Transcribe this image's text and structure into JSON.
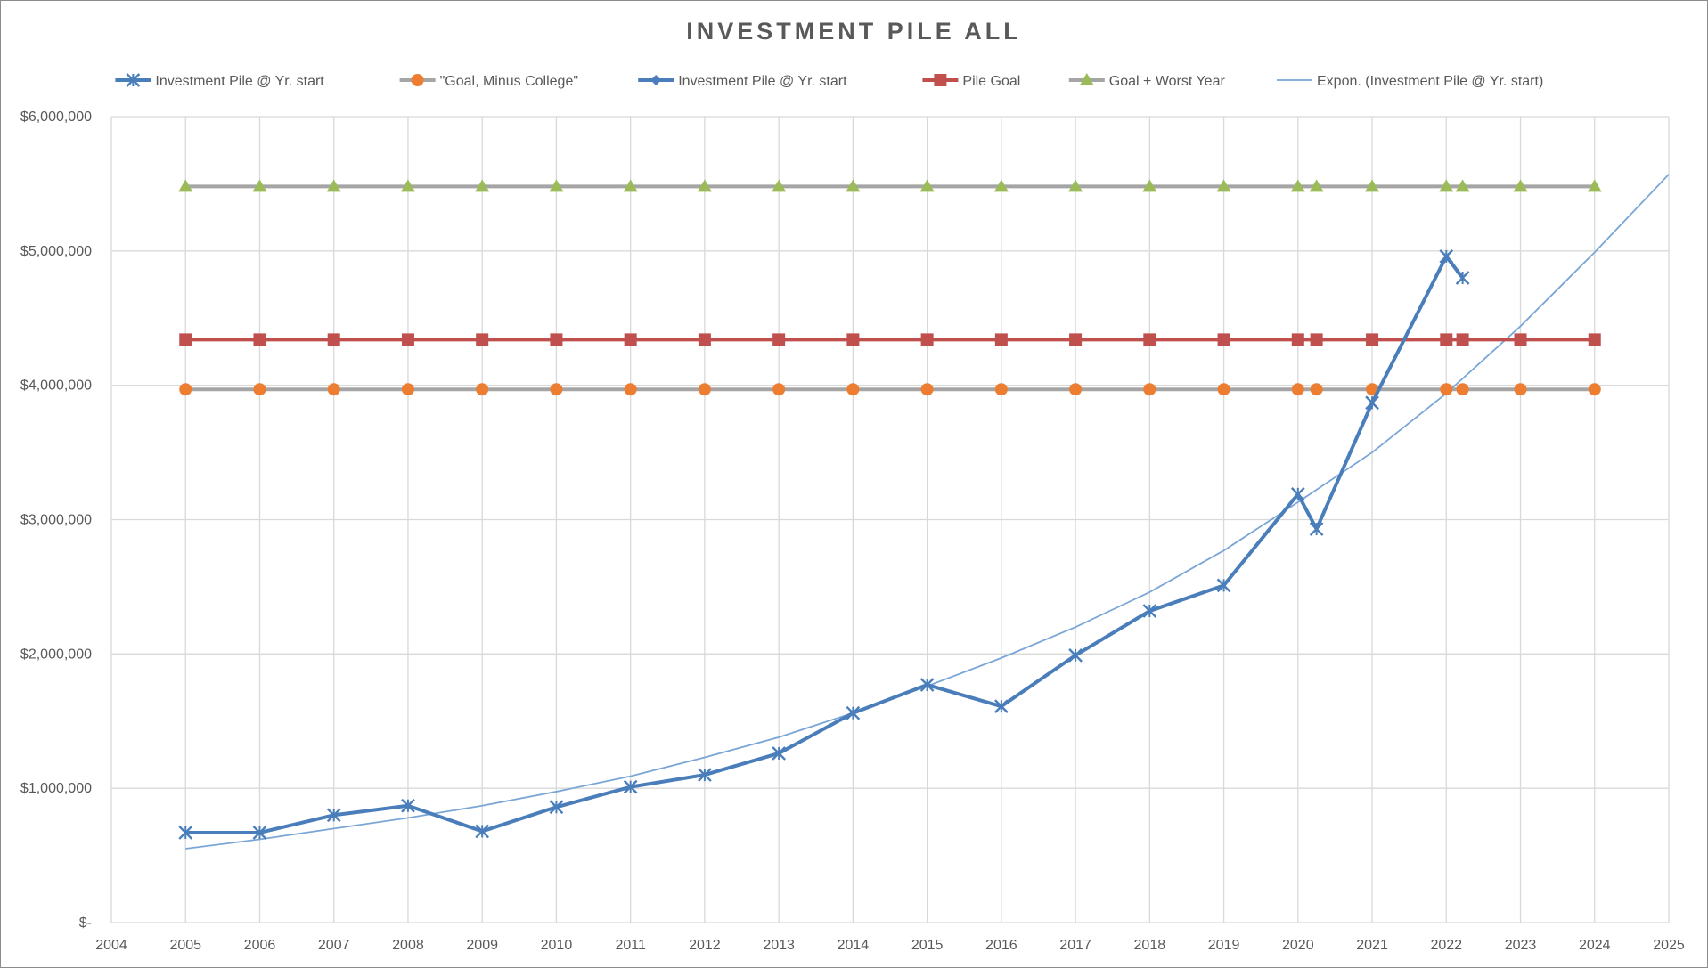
{
  "chart_data": {
    "type": "line",
    "title": "INVESTMENT PILE ALL",
    "xlim": [
      2004,
      2025
    ],
    "ylim": [
      0,
      6000000
    ],
    "x_ticks": [
      "2004",
      "2005",
      "2006",
      "2007",
      "2008",
      "2009",
      "2010",
      "2011",
      "2012",
      "2013",
      "2014",
      "2015",
      "2016",
      "2017",
      "2018",
      "2019",
      "2020",
      "2021",
      "2022",
      "2023",
      "2024",
      "2025"
    ],
    "y_ticks": [
      {
        "value": 0,
        "label": "$-"
      },
      {
        "value": 1000000,
        "label": "$1,000,000"
      },
      {
        "value": 2000000,
        "label": "$2,000,000"
      },
      {
        "value": 3000000,
        "label": "$3,000,000"
      },
      {
        "value": 4000000,
        "label": "$4,000,000"
      },
      {
        "value": 5000000,
        "label": "$5,000,000"
      },
      {
        "value": 6000000,
        "label": "$6,000,000"
      }
    ],
    "grid": true,
    "legend_position": "top",
    "legend": [
      {
        "label": "Investment Pile @ Yr. start",
        "color": "#4a7ebb",
        "marker": "x"
      },
      {
        "label": "\"Goal, Minus College\"",
        "color": "#a5a5a5",
        "marker_color": "#ed7d31",
        "marker": "circle"
      },
      {
        "label": "Investment Pile @ Yr. start",
        "color": "#4a7ebb",
        "marker": "diamond"
      },
      {
        "label": "Pile Goal",
        "color": "#c0504d",
        "marker": "square"
      },
      {
        "label": "Goal + Worst Year",
        "color": "#a5a5a5",
        "marker_color": "#9bbb59",
        "marker": "triangle"
      },
      {
        "label": "Expon. (Investment Pile @ Yr. start)",
        "color": "#7aa6d6",
        "marker": "none"
      }
    ],
    "series": [
      {
        "name": "Investment Pile @ Yr. start",
        "color": "#4a7ebb",
        "marker": "x",
        "x": [
          2005,
          2006,
          2007,
          2008,
          2009,
          2010,
          2011,
          2012,
          2013,
          2014,
          2015,
          2016,
          2017,
          2018,
          2019,
          2020,
          2020.25,
          2021,
          2022,
          2022.22
        ],
        "y": [
          670000,
          670000,
          800000,
          870000,
          680000,
          860000,
          1010000,
          1100000,
          1260000,
          1560000,
          1770000,
          1610000,
          1990000,
          2320000,
          2510000,
          3190000,
          2930000,
          3870000,
          4960000,
          4800000
        ]
      },
      {
        "name": "\"Goal, Minus College\"",
        "color": "#a5a5a5",
        "marker_color": "#ed7d31",
        "marker": "circle",
        "x": [
          2005,
          2006,
          2007,
          2008,
          2009,
          2010,
          2011,
          2012,
          2013,
          2014,
          2015,
          2016,
          2017,
          2018,
          2019,
          2020,
          2020.25,
          2021,
          2022,
          2022.22,
          2023,
          2024
        ],
        "y": [
          3970000,
          3970000,
          3970000,
          3970000,
          3970000,
          3970000,
          3970000,
          3970000,
          3970000,
          3970000,
          3970000,
          3970000,
          3970000,
          3970000,
          3970000,
          3970000,
          3970000,
          3970000,
          3970000,
          3970000,
          3970000,
          3970000
        ]
      },
      {
        "name": "Pile Goal",
        "color": "#c0504d",
        "marker": "square",
        "x": [
          2005,
          2006,
          2007,
          2008,
          2009,
          2010,
          2011,
          2012,
          2013,
          2014,
          2015,
          2016,
          2017,
          2018,
          2019,
          2020,
          2020.25,
          2021,
          2022,
          2022.22,
          2023,
          2024
        ],
        "y": [
          4340000,
          4340000,
          4340000,
          4340000,
          4340000,
          4340000,
          4340000,
          4340000,
          4340000,
          4340000,
          4340000,
          4340000,
          4340000,
          4340000,
          4340000,
          4340000,
          4340000,
          4340000,
          4340000,
          4340000,
          4340000,
          4340000
        ]
      },
      {
        "name": "Goal + Worst Year",
        "color": "#a5a5a5",
        "marker_color": "#9bbb59",
        "marker": "triangle",
        "x": [
          2005,
          2006,
          2007,
          2008,
          2009,
          2010,
          2011,
          2012,
          2013,
          2014,
          2015,
          2016,
          2017,
          2018,
          2019,
          2020,
          2020.25,
          2021,
          2022,
          2022.22,
          2023,
          2024
        ],
        "y": [
          5480000,
          5480000,
          5480000,
          5480000,
          5480000,
          5480000,
          5480000,
          5480000,
          5480000,
          5480000,
          5480000,
          5480000,
          5480000,
          5480000,
          5480000,
          5480000,
          5480000,
          5480000,
          5480000,
          5480000,
          5480000,
          5480000
        ]
      }
    ],
    "trendline": {
      "name": "Expon. (Investment Pile @ Yr. start)",
      "color": "#7aa6d6",
      "type": "exponential",
      "x": [
        2005,
        2006,
        2007,
        2008,
        2009,
        2010,
        2011,
        2012,
        2013,
        2014,
        2015,
        2016,
        2017,
        2018,
        2019,
        2020,
        2021,
        2022,
        2023,
        2024,
        2025
      ],
      "y": [
        550000,
        620000,
        700000,
        780000,
        870000,
        975000,
        1090000,
        1230000,
        1380000,
        1560000,
        1760000,
        1970000,
        2200000,
        2460000,
        2770000,
        3130000,
        3500000,
        3940000,
        4440000,
        4990000,
        5570000
      ]
    }
  }
}
